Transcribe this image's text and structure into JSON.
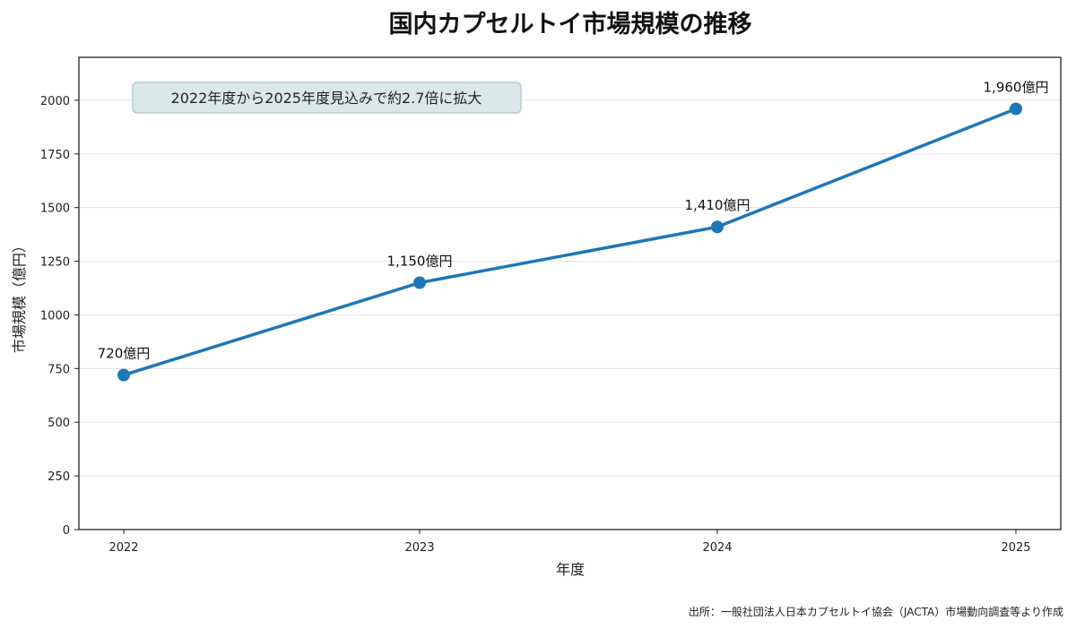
{
  "chart_data": {
    "type": "line",
    "title": "国内カプセルトイ市場規模の推移",
    "xlabel": "年度",
    "ylabel": "市場規模（億円）",
    "categories": [
      "2022",
      "2023",
      "2024",
      "2025"
    ],
    "series": [
      {
        "values": [
          720,
          1150,
          1410,
          1960
        ]
      }
    ],
    "data_labels": [
      "720億円",
      "1,150億円",
      "1,410億円",
      "1,960億円"
    ],
    "y_ticks": [
      0,
      250,
      500,
      750,
      1000,
      1250,
      1500,
      1750,
      2000
    ],
    "ylim": [
      0,
      2200
    ],
    "grid": "horizontal",
    "annotation": "2022年度から2025年度見込みで約2.7倍に拡大",
    "source": "出所：一般社団法人日本カプセルトイ協会（JACTA）市場動向調査等より作成",
    "colors": {
      "line": "#1f77b4",
      "grid": "#e6e0ee",
      "annotation_bg": "#d9e9e9",
      "annotation_border": "#b8cccc"
    }
  }
}
